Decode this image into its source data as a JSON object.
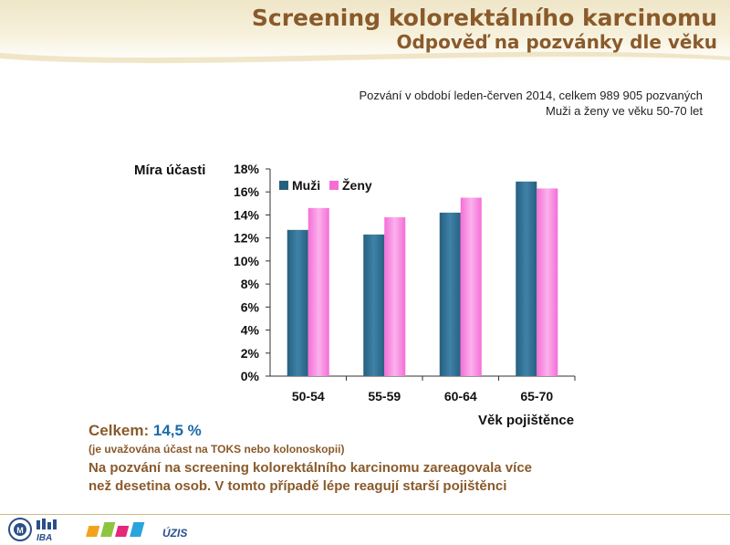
{
  "header": {
    "title": "Screening kolorektálního karcinomu",
    "subtitle": "Odpověď na pozvánky dle věku"
  },
  "info": {
    "line1": "Pozvání v období leden-červen 2014, celkem 989 905 pozvaných",
    "line2": "Muži a ženy ve věku 50-70 let"
  },
  "chart_data": {
    "type": "bar",
    "ylabel": "Míra účasti",
    "xlabel": "Věk pojištěnce",
    "categories": [
      "50-54",
      "55-59",
      "60-64",
      "65-70"
    ],
    "series": [
      {
        "name": "Muži",
        "values": [
          12.7,
          12.3,
          14.2,
          16.9
        ],
        "color": "#27607f"
      },
      {
        "name": "Ženy",
        "values": [
          14.6,
          13.8,
          15.5,
          16.3
        ],
        "color": "#f56ed8"
      }
    ],
    "ylim": [
      0,
      18
    ],
    "yticks": [
      "0%",
      "2%",
      "4%",
      "6%",
      "8%",
      "10%",
      "12%",
      "14%",
      "16%",
      "18%"
    ],
    "legend_position": "top-left",
    "grid": false
  },
  "summary": {
    "total_label": "Celkem:",
    "total_value": "14,5 %",
    "note": "(je uvažována účast na TOKS nebo kolonoskopii)",
    "conclusion_line1": "Na pozvání na screening kolorektálního karcinomu zareagovala více",
    "conclusion_line2": "než desetina osob. V tomto případě lépe reagují starší pojištěnci"
  },
  "footer": {
    "logo_iba": "IBA",
    "logo_uzis": "ÚZIS"
  },
  "colors": {
    "title": "#8a5a2b",
    "accent_blue": "#1a6aa8"
  }
}
